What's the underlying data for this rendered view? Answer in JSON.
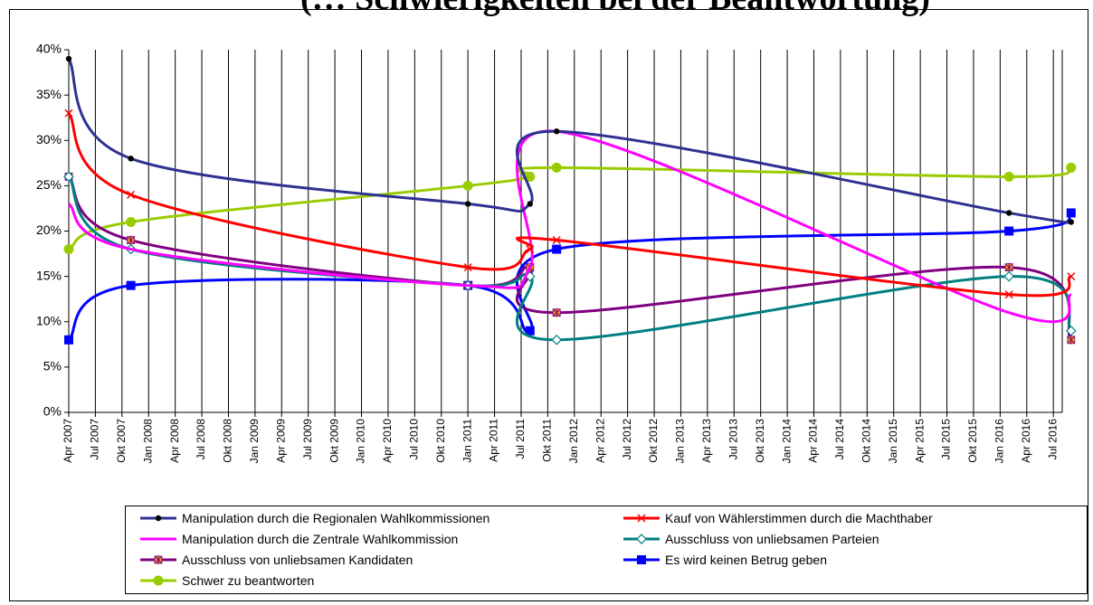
{
  "title_fragment": "(… Schwierigkeiten bei der Beantwortung)",
  "chart_data": {
    "type": "line",
    "title": "",
    "xlabel": "",
    "ylabel": "",
    "ylim": [
      0,
      40
    ],
    "yticks": [
      0,
      5,
      10,
      15,
      20,
      25,
      30,
      35,
      40
    ],
    "ytick_labels": [
      "0%",
      "5%",
      "10%",
      "15%",
      "20%",
      "25%",
      "30%",
      "35%",
      "40%"
    ],
    "x_tick_labels": [
      "Apr 2007",
      "Jul 2007",
      "Okt 2007",
      "Jan 2008",
      "Apr 2008",
      "Jul 2008",
      "Okt 2008",
      "Jan 2009",
      "Apr 2009",
      "Jul 2009",
      "Okt 2009",
      "Jan 2010",
      "Apr 2010",
      "Jul 2010",
      "Okt 2010",
      "Jan 2011",
      "Apr 2011",
      "Jul 2011",
      "Okt 2011",
      "Jan 2012",
      "Apr 2012",
      "Jul 2012",
      "Okt 2012",
      "Jan 2013",
      "Apr 2013",
      "Jul 2013",
      "Okt 2013",
      "Jan 2014",
      "Apr 2014",
      "Jul 2014",
      "Okt 2014",
      "Jan 2015",
      "Apr 2015",
      "Jul 2015",
      "Okt 2015",
      "Jan 2016",
      "Apr 2016",
      "Jul 2016"
    ],
    "x_dates": [
      "2007-04",
      "2007-11",
      "2011-01",
      "2011-08",
      "2011-11",
      "2016-02",
      "2016-09"
    ],
    "grid": "vertical",
    "legend_position": "bottom",
    "series": [
      {
        "name": "Manipulation durch die Regionalen Wahlkommissionen",
        "color": "#2E3192",
        "marker": "dot",
        "points": [
          [
            "2007-04",
            39
          ],
          [
            "2007-11",
            28
          ],
          [
            "2011-01",
            23
          ],
          [
            "2011-08",
            23
          ],
          [
            "2011-11",
            31
          ],
          [
            "2016-02",
            22
          ],
          [
            "2016-09",
            21
          ]
        ]
      },
      {
        "name": "Kauf von Wählerstimmen durch die Machthaber",
        "color": "#FF0000",
        "marker": "x",
        "points": [
          [
            "2007-04",
            33
          ],
          [
            "2007-11",
            24
          ],
          [
            "2011-01",
            16
          ],
          [
            "2011-08",
            18
          ],
          [
            "2011-11",
            19
          ],
          [
            "2016-02",
            13
          ],
          [
            "2016-09",
            15
          ]
        ]
      },
      {
        "name": "Manipulation durch die Zentrale Wahlkommission",
        "color": "#FF00FF",
        "marker": "none",
        "points": [
          [
            "2007-04",
            23
          ],
          [
            "2007-11",
            18
          ],
          [
            "2011-01",
            14
          ],
          [
            "2011-08",
            16
          ],
          [
            "2011-11",
            31
          ],
          [
            "2016-02",
            11
          ],
          [
            "2016-09",
            13
          ]
        ]
      },
      {
        "name": "Ausschluss von unliebsamen Parteien",
        "color": "#008080",
        "marker": "diamond",
        "points": [
          [
            "2007-04",
            26
          ],
          [
            "2007-11",
            18
          ],
          [
            "2011-01",
            14
          ],
          [
            "2011-08",
            15
          ],
          [
            "2011-11",
            8
          ],
          [
            "2016-02",
            15
          ],
          [
            "2016-09",
            9
          ]
        ]
      },
      {
        "name": "Ausschluss von unliebsamen Kandidaten",
        "color": "#800080",
        "marker": "star",
        "points": [
          [
            "2007-04",
            26
          ],
          [
            "2007-11",
            19
          ],
          [
            "2011-01",
            14
          ],
          [
            "2011-08",
            16
          ],
          [
            "2011-11",
            11
          ],
          [
            "2016-02",
            16
          ],
          [
            "2016-09",
            8
          ]
        ]
      },
      {
        "name": "Es wird keinen Betrug geben",
        "color": "#0000FF",
        "marker": "square",
        "points": [
          [
            "2007-04",
            8
          ],
          [
            "2007-11",
            14
          ],
          [
            "2011-01",
            14
          ],
          [
            "2011-08",
            9
          ],
          [
            "2011-11",
            18
          ],
          [
            "2016-02",
            20
          ],
          [
            "2016-09",
            22
          ]
        ]
      },
      {
        "name": "Schwer zu beantworten",
        "color": "#99CC00",
        "marker": "circle",
        "points": [
          [
            "2007-04",
            18
          ],
          [
            "2007-11",
            21
          ],
          [
            "2011-01",
            25
          ],
          [
            "2011-08",
            26
          ],
          [
            "2011-11",
            27
          ],
          [
            "2016-02",
            26
          ],
          [
            "2016-09",
            27
          ]
        ]
      }
    ]
  }
}
